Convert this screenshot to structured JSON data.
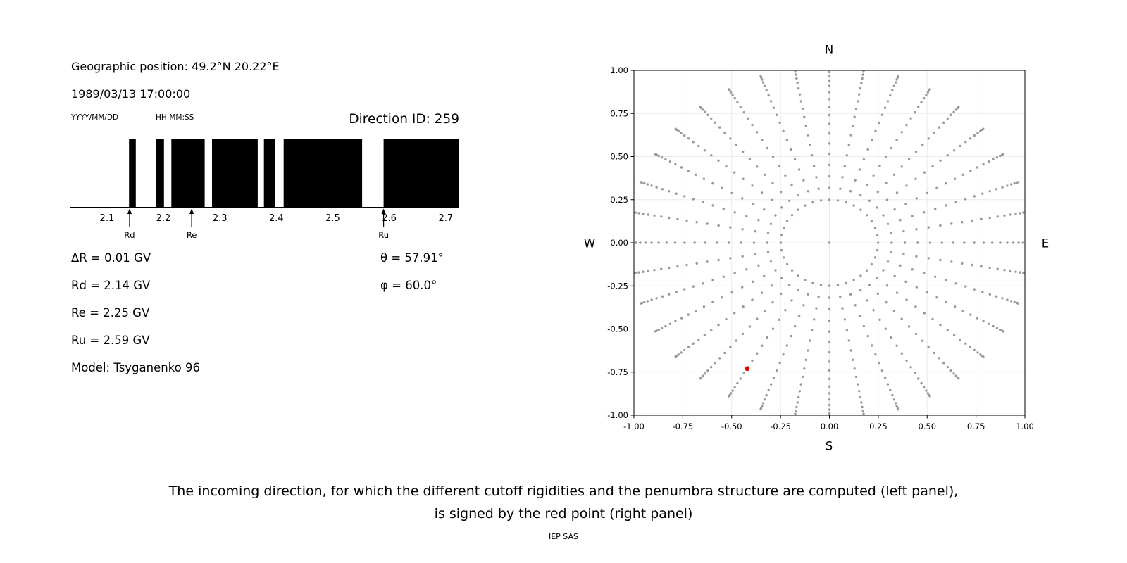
{
  "left_panel": {
    "geo_position": "Geographic position: 49.2°N 20.22°E",
    "datetime": "1989/03/13 17:00:00",
    "date_format": "YYYY/MM/DD",
    "time_format": "HH:MM:SS",
    "direction_id": "Direction ID: 259",
    "params": [
      "ΔR = 0.01 GV",
      "Rd = 2.14 GV",
      "Re = 2.25 GV",
      "Ru = 2.59 GV",
      "Model: Tsyganenko 96"
    ],
    "theta": "θ = 57.91°",
    "phi": "φ = 60.0°"
  },
  "right_panel": {
    "compass": {
      "north": "N",
      "south": "S",
      "west": "W",
      "east": "E"
    }
  },
  "caption": {
    "line1": "The incoming direction, for which the different cutoff rigidities and the penumbra structure are computed (left panel),",
    "line2": "is signed by the red point (right panel)",
    "credit": "IEP SAS"
  },
  "chart_data": [
    {
      "type": "bar",
      "name": "penumbra-structure",
      "xlim": [
        2.034,
        2.724
      ],
      "xticks": [
        2.1,
        2.2,
        2.3,
        2.4,
        2.5,
        2.6,
        2.7
      ],
      "xtick_labels": [
        "2.1",
        "2.2",
        "2.3",
        "2.4",
        "2.5",
        "2.6",
        "2.7"
      ],
      "forbidden_bands_gv": [
        [
          2.139,
          2.151
        ],
        [
          2.187,
          2.201
        ],
        [
          2.214,
          2.273
        ],
        [
          2.286,
          2.367
        ],
        [
          2.378,
          2.398
        ],
        [
          2.413,
          2.552
        ],
        [
          2.59,
          2.724
        ]
      ],
      "band_color": "#000000",
      "background": "#ffffff",
      "markers": [
        {
          "label": "Rd",
          "gv": 2.14
        },
        {
          "label": "Re",
          "gv": 2.25
        },
        {
          "label": "Ru",
          "gv": 2.59
        }
      ]
    },
    {
      "type": "scatter",
      "name": "asymptotic-direction-map",
      "xlim": [
        -1,
        1
      ],
      "ylim": [
        -1,
        1
      ],
      "tick_values": [
        -1,
        -0.75,
        -0.5,
        -0.25,
        0,
        0.25,
        0.5,
        0.75,
        1
      ],
      "tick_labels": [
        "-1.00",
        "-0.75",
        "-0.50",
        "-0.25",
        "0.00",
        "0.25",
        "0.50",
        "0.75",
        "1.00"
      ],
      "grid": true,
      "grid_color": "#ececec",
      "dot_color": "#999999",
      "center_point": [
        0,
        0
      ],
      "spoke_pattern": {
        "spokes": 36,
        "azimuth_step_deg": 10,
        "zenith_start_deg": 14,
        "zenith_end_deg": 86,
        "zenith_step_deg": 4,
        "radius_scale": 1.03
      },
      "red_point": {
        "x": -0.42,
        "y": -0.73,
        "color": "#e00000"
      }
    }
  ]
}
